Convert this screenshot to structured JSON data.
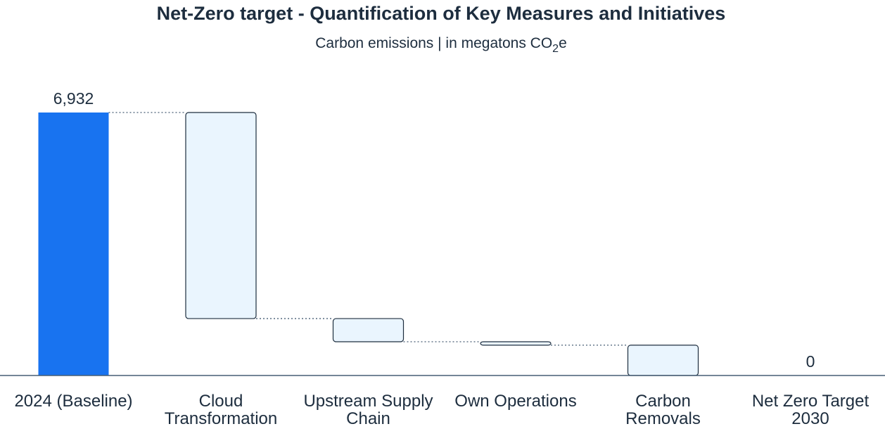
{
  "chart_data": {
    "type": "bar",
    "subtype": "waterfall",
    "title": "Net-Zero target - Quantification of Key Measures and Initiatives",
    "subtitle_prefix": "Carbon emissions | in megatons CO",
    "subtitle_sub": "2",
    "subtitle_suffix": "e",
    "categories": [
      {
        "line1": "2024 (Baseline)",
        "line2": ""
      },
      {
        "line1": "Cloud",
        "line2": "Transformation"
      },
      {
        "line1": "Upstream Supply",
        "line2": "Chain"
      },
      {
        "line1": "Own Operations",
        "line2": ""
      },
      {
        "line1": "Carbon",
        "line2": "Removals"
      },
      {
        "line1": "Net Zero Target",
        "line2": "2030"
      }
    ],
    "bars": [
      {
        "kind": "total",
        "start": 0,
        "end": 6932,
        "label": "6,932"
      },
      {
        "kind": "decrease",
        "start": 6932,
        "end": 1500,
        "label": ""
      },
      {
        "kind": "decrease",
        "start": 1500,
        "end": 890,
        "label": ""
      },
      {
        "kind": "decrease",
        "start": 890,
        "end": 800,
        "label": ""
      },
      {
        "kind": "decrease",
        "start": 800,
        "end": 0,
        "label": ""
      },
      {
        "kind": "total",
        "start": 0,
        "end": 0,
        "label": "0"
      }
    ],
    "ylim": [
      0,
      6932
    ],
    "grid": false,
    "legend": "none",
    "colors": {
      "total": "#1873f0",
      "decrease_fill": "#eaf5fe",
      "decrease_stroke": "#1d2d3e",
      "connector": "#475e75",
      "axis": "#475e75",
      "text": "#1d2d3e"
    }
  }
}
